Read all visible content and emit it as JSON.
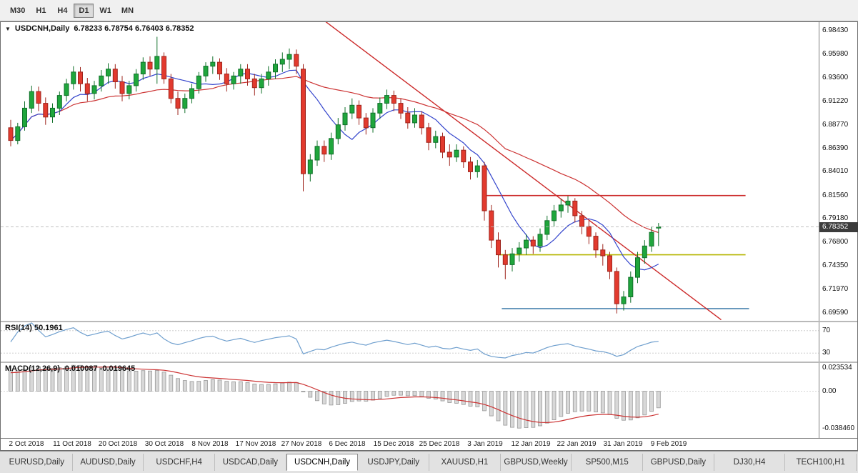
{
  "toolbar": {
    "timeframes": [
      {
        "label": "M30",
        "active": false
      },
      {
        "label": "H1",
        "active": false
      },
      {
        "label": "H4",
        "active": false
      },
      {
        "label": "D1",
        "active": true
      },
      {
        "label": "W1",
        "active": false
      },
      {
        "label": "MN",
        "active": false
      }
    ]
  },
  "chart": {
    "title_symbol": "USDCNH,Daily",
    "ohlc_text": "6.78233 6.78754 6.76403 6.78352",
    "price_badge": "6.78352",
    "rsi_label": "RSI(14) 50.1961",
    "macd_label": "MACD(12,26,9) -0.010087 -0.019645"
  },
  "chart_data": {
    "type": "candlestick",
    "symbol": "USDCNH",
    "timeframe": "Daily",
    "current": {
      "open": "6.78233",
      "high": "6.78754",
      "low": "6.76403",
      "close": "6.78352"
    },
    "x_labels": [
      "2 Oct 2018",
      "11 Oct 2018",
      "20 Oct 2018",
      "30 Oct 2018",
      "8 Nov 2018",
      "17 Nov 2018",
      "27 Nov 2018",
      "6 Dec 2018",
      "15 Dec 2018",
      "25 Dec 2018",
      "3 Jan 2019",
      "12 Jan 2019",
      "22 Jan 2019",
      "31 Jan 2019",
      "9 Feb 2019"
    ],
    "price_scale_labels": [
      "6.98430",
      "6.95980",
      "6.93600",
      "6.91220",
      "6.88770",
      "6.86390",
      "6.84010",
      "6.81560",
      "6.79180",
      "6.76800",
      "6.74350",
      "6.71970",
      "6.69590"
    ],
    "price_range": {
      "min": 6.6875,
      "max": 6.993
    },
    "colors": {
      "up_fill": "#1fa63c",
      "up_stroke": "#11702a",
      "down_fill": "#e23a2e",
      "down_stroke": "#9e241c",
      "bid_line": "#b8b8b8",
      "macd_hist_fill": "#d8d8d8",
      "macd_hist_stroke": "#989898",
      "badge_bg": "#3c3c3c"
    },
    "candles": [
      [
        6.885,
        6.893,
        6.866,
        6.872
      ],
      [
        6.872,
        6.89,
        6.868,
        6.886
      ],
      [
        6.886,
        6.912,
        6.882,
        6.905
      ],
      [
        6.905,
        6.928,
        6.9,
        6.922
      ],
      [
        6.922,
        6.927,
        6.902,
        6.91
      ],
      [
        6.91,
        6.916,
        6.888,
        6.896
      ],
      [
        6.896,
        6.91,
        6.89,
        6.905
      ],
      [
        6.905,
        6.922,
        6.898,
        6.918
      ],
      [
        6.918,
        6.935,
        6.912,
        6.93
      ],
      [
        6.93,
        6.948,
        6.924,
        6.942
      ],
      [
        6.942,
        6.947,
        6.922,
        6.93
      ],
      [
        6.93,
        6.936,
        6.912,
        6.92
      ],
      [
        6.92,
        6.933,
        6.914,
        6.928
      ],
      [
        6.928,
        6.944,
        6.922,
        6.938
      ],
      [
        6.938,
        6.951,
        6.93,
        6.945
      ],
      [
        6.945,
        6.95,
        6.925,
        6.932
      ],
      [
        6.932,
        6.938,
        6.912,
        6.92
      ],
      [
        6.92,
        6.933,
        6.914,
        6.928
      ],
      [
        6.928,
        6.945,
        6.922,
        6.94
      ],
      [
        6.94,
        6.957,
        6.934,
        6.952
      ],
      [
        6.952,
        6.958,
        6.938,
        6.945
      ],
      [
        6.945,
        6.978,
        6.93,
        6.958
      ],
      [
        6.958,
        6.962,
        6.93,
        6.935
      ],
      [
        6.935,
        6.94,
        6.91,
        6.915
      ],
      [
        6.915,
        6.922,
        6.898,
        6.905
      ],
      [
        6.905,
        6.92,
        6.9,
        6.915
      ],
      [
        6.915,
        6.93,
        6.91,
        6.925
      ],
      [
        6.925,
        6.942,
        6.92,
        6.938
      ],
      [
        6.938,
        6.952,
        6.932,
        6.948
      ],
      [
        6.948,
        6.958,
        6.94,
        6.952
      ],
      [
        6.952,
        6.956,
        6.934,
        6.94
      ],
      [
        6.94,
        6.946,
        6.922,
        6.93
      ],
      [
        6.93,
        6.942,
        6.924,
        6.938
      ],
      [
        6.938,
        6.95,
        6.93,
        6.945
      ],
      [
        6.945,
        6.95,
        6.928,
        6.935
      ],
      [
        6.935,
        6.94,
        6.918,
        6.926
      ],
      [
        6.926,
        6.94,
        6.92,
        6.935
      ],
      [
        6.935,
        6.948,
        6.928,
        6.942
      ],
      [
        6.942,
        6.955,
        6.935,
        6.95
      ],
      [
        6.95,
        6.962,
        6.942,
        6.955
      ],
      [
        6.955,
        6.966,
        6.945,
        6.96
      ],
      [
        6.96,
        6.965,
        6.94,
        6.948
      ],
      [
        6.945,
        6.95,
        6.82,
        6.838
      ],
      [
        6.838,
        6.858,
        6.83,
        6.852
      ],
      [
        6.852,
        6.872,
        6.846,
        6.866
      ],
      [
        6.866,
        6.872,
        6.85,
        6.858
      ],
      [
        6.858,
        6.88,
        6.852,
        6.874
      ],
      [
        6.874,
        6.895,
        6.868,
        6.888
      ],
      [
        6.888,
        6.906,
        6.882,
        6.9
      ],
      [
        6.9,
        6.915,
        6.894,
        6.908
      ],
      [
        6.908,
        6.913,
        6.888,
        6.895
      ],
      [
        6.895,
        6.9,
        6.878,
        6.885
      ],
      [
        6.885,
        6.905,
        6.88,
        6.9
      ],
      [
        6.9,
        6.916,
        6.894,
        6.91
      ],
      [
        6.91,
        6.924,
        6.904,
        6.918
      ],
      [
        6.918,
        6.923,
        6.902,
        6.91
      ],
      [
        6.91,
        6.915,
        6.894,
        6.9
      ],
      [
        6.9,
        6.906,
        6.884,
        6.89
      ],
      [
        6.89,
        6.905,
        6.885,
        6.898
      ],
      [
        6.898,
        6.902,
        6.878,
        6.885
      ],
      [
        6.885,
        6.89,
        6.862,
        6.87
      ],
      [
        6.87,
        6.882,
        6.864,
        6.876
      ],
      [
        6.876,
        6.88,
        6.854,
        6.86
      ],
      [
        6.86,
        6.868,
        6.846,
        6.855
      ],
      [
        6.855,
        6.868,
        6.85,
        6.862
      ],
      [
        6.862,
        6.866,
        6.844,
        6.85
      ],
      [
        6.85,
        6.855,
        6.832,
        6.84
      ],
      [
        6.84,
        6.852,
        6.834,
        6.846
      ],
      [
        6.846,
        6.85,
        6.79,
        6.8
      ],
      [
        6.8,
        6.806,
        6.762,
        6.77
      ],
      [
        6.77,
        6.778,
        6.742,
        6.755
      ],
      [
        6.755,
        6.76,
        6.73,
        6.745
      ],
      [
        6.745,
        6.762,
        6.738,
        6.756
      ],
      [
        6.756,
        6.768,
        6.748,
        6.762
      ],
      [
        6.762,
        6.776,
        6.755,
        6.77
      ],
      [
        6.77,
        6.774,
        6.756,
        6.764
      ],
      [
        6.764,
        6.782,
        6.758,
        6.776
      ],
      [
        6.776,
        6.795,
        6.77,
        6.79
      ],
      [
        6.79,
        6.806,
        6.784,
        6.8
      ],
      [
        6.8,
        6.812,
        6.793,
        6.806
      ],
      [
        6.806,
        6.815,
        6.798,
        6.81
      ],
      [
        6.81,
        6.813,
        6.788,
        6.795
      ],
      [
        6.795,
        6.8,
        6.776,
        6.784
      ],
      [
        6.784,
        6.79,
        6.766,
        6.774
      ],
      [
        6.774,
        6.778,
        6.752,
        6.76
      ],
      [
        6.76,
        6.766,
        6.744,
        6.754
      ],
      [
        6.754,
        6.758,
        6.73,
        6.738
      ],
      [
        6.738,
        6.742,
        6.695,
        6.705
      ],
      [
        6.705,
        6.718,
        6.698,
        6.712
      ],
      [
        6.712,
        6.738,
        6.706,
        6.732
      ],
      [
        6.732,
        6.758,
        6.726,
        6.752
      ],
      [
        6.752,
        6.77,
        6.746,
        6.764
      ],
      [
        6.764,
        6.784,
        6.758,
        6.778
      ],
      [
        6.78233,
        6.78754,
        6.76403,
        6.78352
      ]
    ],
    "overlays": {
      "ma_fast": {
        "period": 8,
        "color": "#3344cc"
      },
      "ma_slow": {
        "period": 30,
        "color": "#cc3333"
      },
      "trendline": {
        "from_index": 44,
        "from_price": 7.0,
        "to_index": 102,
        "to_price": 6.6885,
        "color": "#cc2a2a"
      },
      "hlines": [
        {
          "price": 6.8156,
          "color": "#cc2a2a",
          "from_index": 68,
          "to_index": 105.5
        },
        {
          "price": 6.755,
          "color": "#b5b500",
          "from_index": 70,
          "to_index": 105.5
        },
        {
          "price": 6.7,
          "color": "#4d86b0",
          "from_index": 70.5,
          "to_index": 106
        }
      ]
    },
    "indicators": {
      "rsi": {
        "label": "RSI(14) 50.1961",
        "period": 14,
        "value": "50.1961",
        "levels": [
          "70",
          "30"
        ],
        "range": {
          "min": 15,
          "max": 85
        },
        "color": "#6f9fce"
      },
      "macd": {
        "label": "MACD(12,26,9) -0.010087 -0.019645",
        "fast": 12,
        "slow": 26,
        "signal": 9,
        "values": "-0.010087 -0.019645",
        "scale_labels": [
          "0.023534",
          "0.00",
          "-0.038460"
        ],
        "range": {
          "min": -0.048,
          "max": 0.029
        },
        "signal_color": "#cc3333"
      }
    }
  },
  "tabs": {
    "items": [
      {
        "label": "EURUSD,Daily",
        "active": false
      },
      {
        "label": "AUDUSD,Daily",
        "active": false
      },
      {
        "label": "USDCHF,H4",
        "active": false
      },
      {
        "label": "USDCAD,Daily",
        "active": false
      },
      {
        "label": "USDCNH,Daily",
        "active": true
      },
      {
        "label": "USDJPY,Daily",
        "active": false
      },
      {
        "label": "XAUUSD,H1",
        "active": false
      },
      {
        "label": "GBPUSD,Weekly",
        "active": false
      },
      {
        "label": "SP500,M15",
        "active": false
      },
      {
        "label": "GBPUSD,Daily",
        "active": false
      },
      {
        "label": "DJ30,H4",
        "active": false
      },
      {
        "label": "TECH100,H1",
        "active": false
      }
    ]
  }
}
